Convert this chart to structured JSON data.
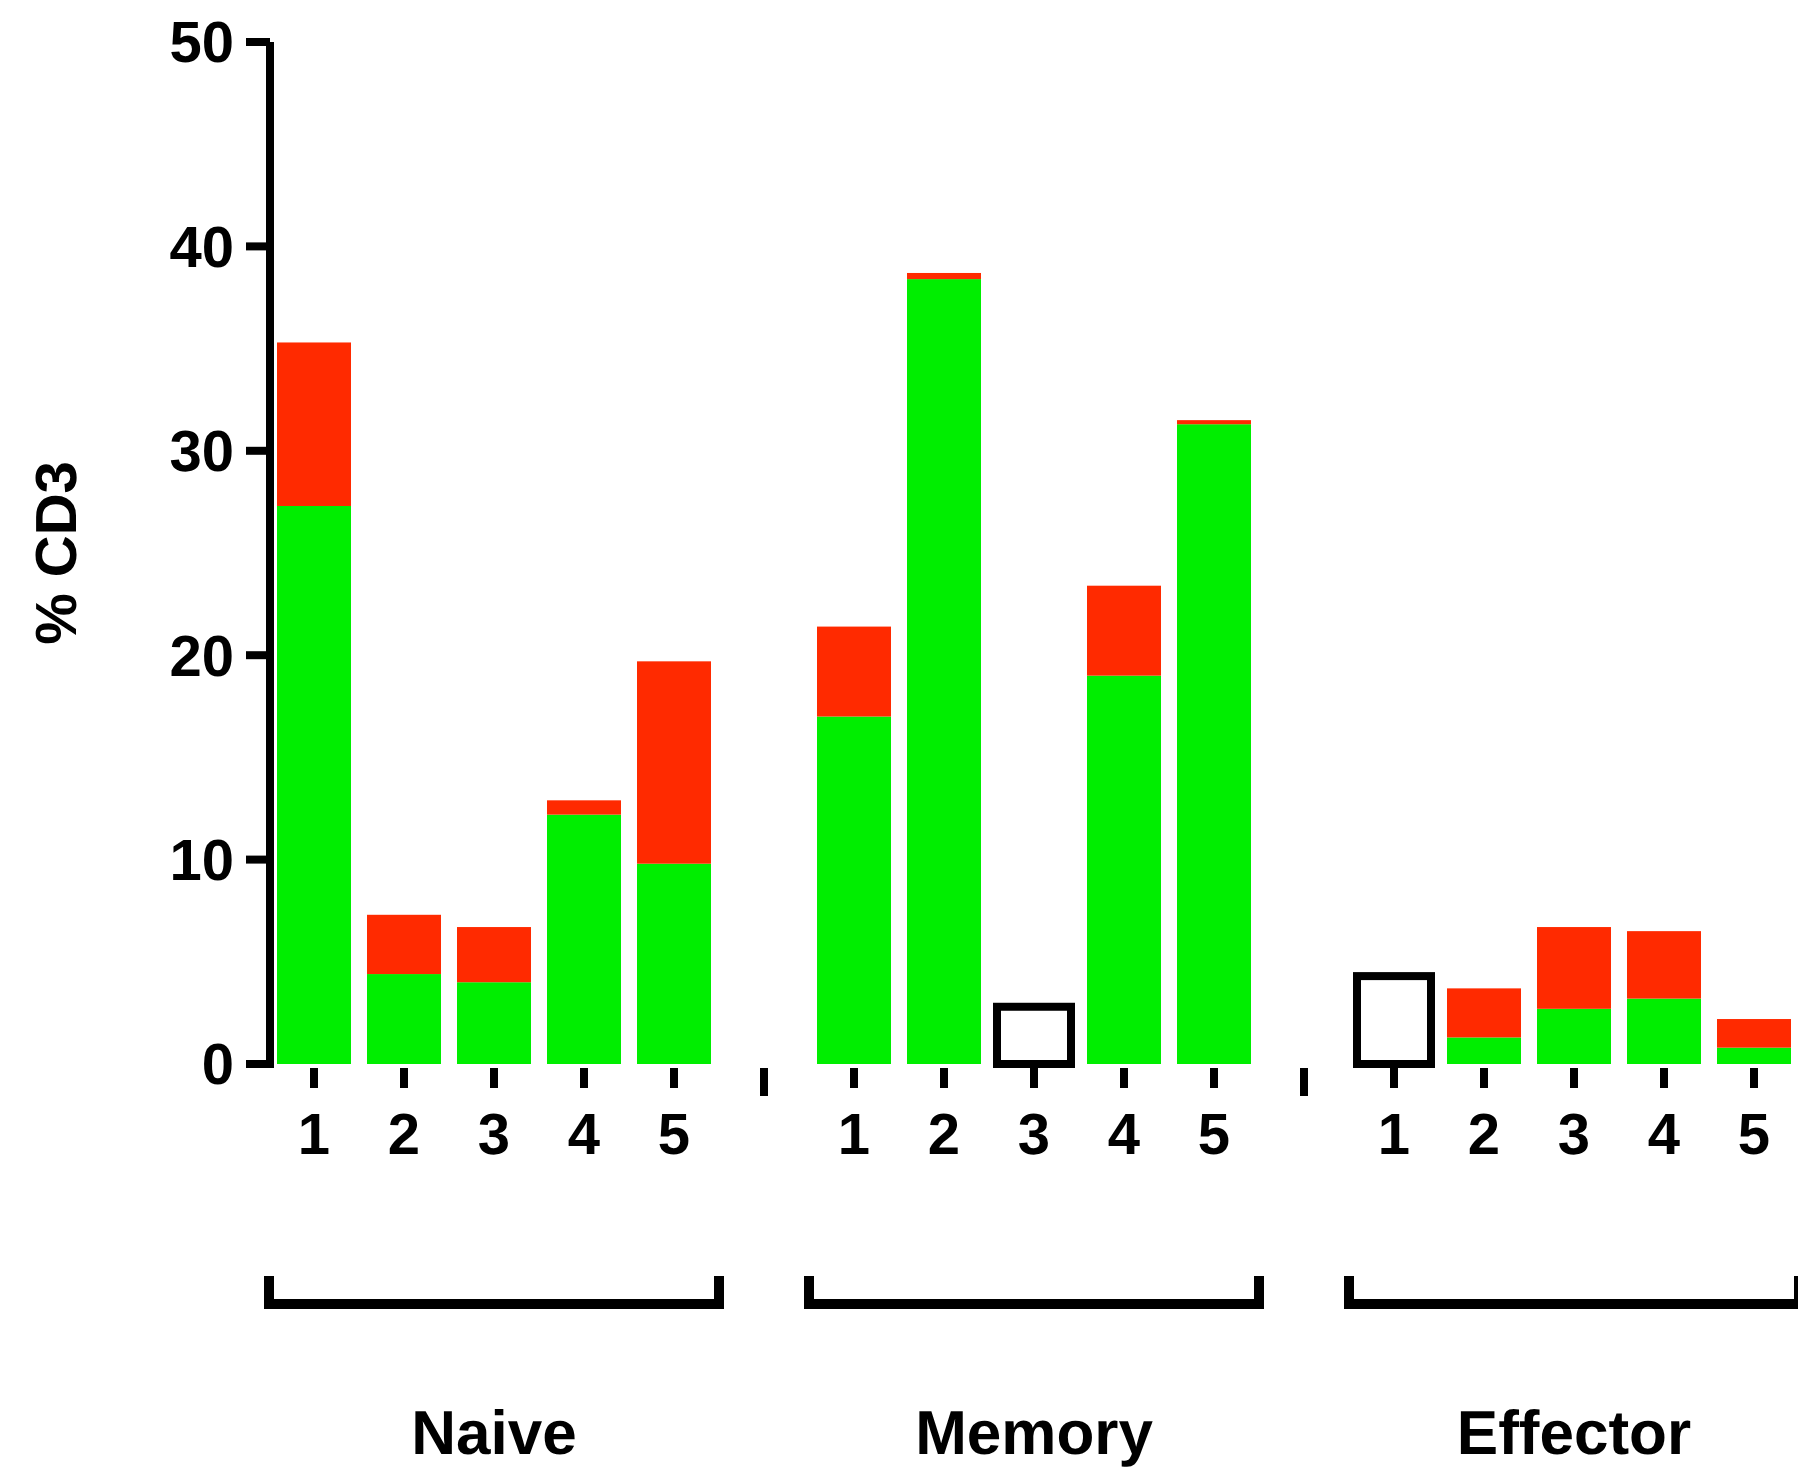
{
  "chart_data": {
    "type": "bar",
    "stacked": true,
    "ylabel": "% CD3",
    "categories": [
      "1",
      "2",
      "3",
      "4",
      "5",
      "1",
      "2",
      "3",
      "4",
      "5",
      "1",
      "2",
      "3",
      "4",
      "5"
    ],
    "series": [
      {
        "color": "#00ee00",
        "values": [
          27.3,
          4.4,
          4.0,
          12.2,
          9.8,
          17.0,
          38.4,
          null,
          19.0,
          31.3,
          null,
          1.3,
          2.7,
          3.2,
          0.8
        ]
      },
      {
        "color": "#ff2a00",
        "values": [
          8.0,
          2.9,
          2.7,
          0.7,
          9.9,
          4.4,
          0.3,
          null,
          4.4,
          0.2,
          null,
          2.4,
          4.0,
          3.3,
          1.4
        ]
      },
      {
        "color": "#ffffff",
        "values": [
          null,
          null,
          null,
          null,
          null,
          null,
          null,
          2.8,
          null,
          null,
          4.3,
          null,
          null,
          null,
          null
        ]
      }
    ],
    "ylim": [
      0,
      50
    ],
    "yticks": [
      0,
      10,
      20,
      30,
      40,
      50
    ],
    "grid": false,
    "annotations": [
      "Naive",
      "Memory",
      "Effector"
    ]
  }
}
